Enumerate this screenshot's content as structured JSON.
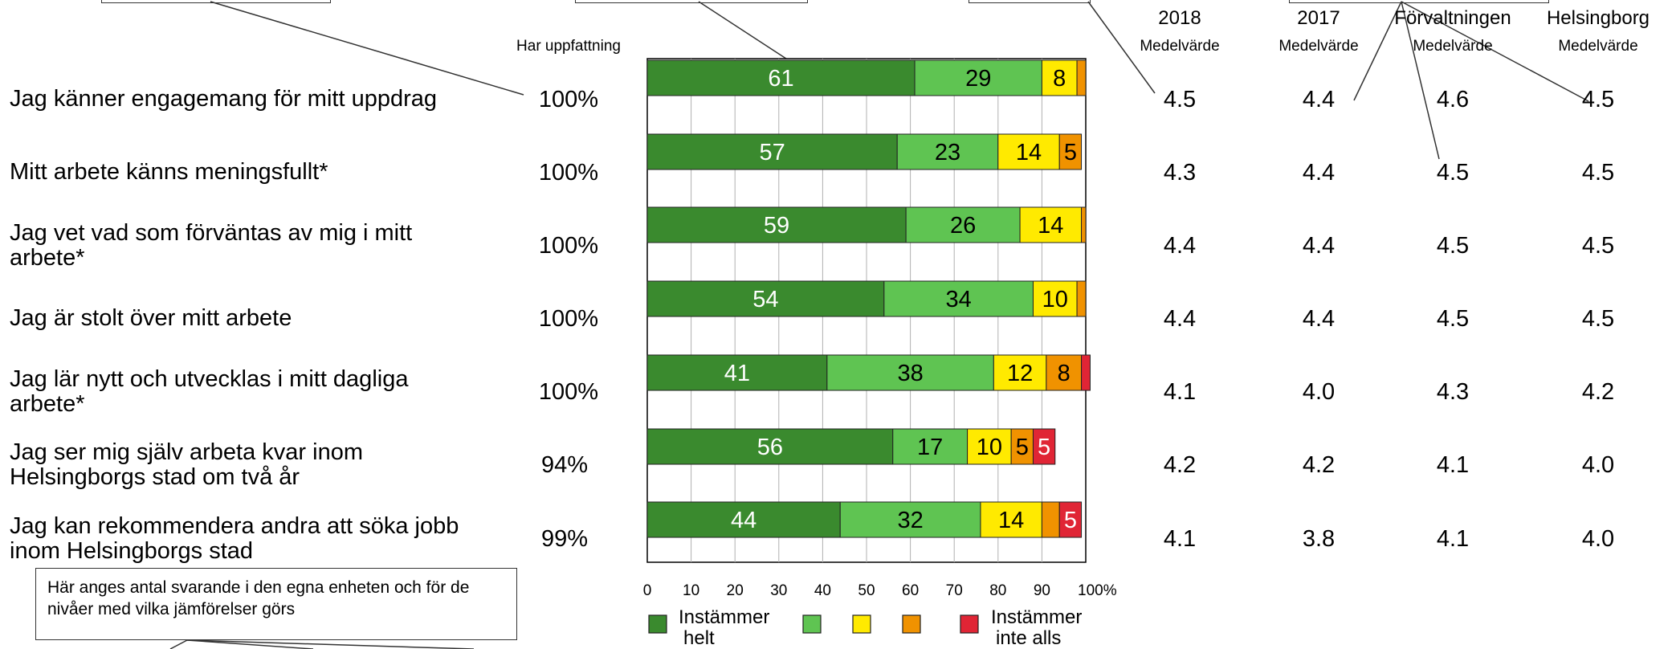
{
  "header": {
    "has_opinion_label": "Har uppfattning",
    "columns": [
      {
        "title": "2018",
        "sub": "Medelvärde"
      },
      {
        "title": "2017",
        "sub": "Medelvärde"
      },
      {
        "title": "Förvaltningen",
        "sub": "Medelvärde"
      },
      {
        "title": "Helsingborg",
        "sub": "Medelvärde"
      }
    ]
  },
  "note": "Här anges antal svarande i den egna enheten och för de nivåer med vilka jämförelser görs",
  "rows": [
    {
      "question": "Jag känner engagemang för mitt uppdrag",
      "has_opinion": "100%",
      "means": [
        "4.5",
        "4.4",
        "4.6",
        "4.5"
      ]
    },
    {
      "question": "Mitt arbete känns meningsfullt*",
      "has_opinion": "100%",
      "means": [
        "4.3",
        "4.4",
        "4.5",
        "4.5"
      ]
    },
    {
      "question": "Jag vet vad som förväntas av mig i mitt arbete*",
      "has_opinion": "100%",
      "means": [
        "4.4",
        "4.4",
        "4.5",
        "4.5"
      ]
    },
    {
      "question": "Jag är stolt över mitt arbete",
      "has_opinion": "100%",
      "means": [
        "4.4",
        "4.4",
        "4.5",
        "4.5"
      ]
    },
    {
      "question": "Jag lär nytt och utvecklas i mitt dagliga arbete*",
      "has_opinion": "100%",
      "means": [
        "4.1",
        "4.0",
        "4.3",
        "4.2"
      ]
    },
    {
      "question": "Jag ser mig själv arbeta kvar inom Helsingborgs stad om två år",
      "has_opinion": "94%",
      "means": [
        "4.2",
        "4.2",
        "4.1",
        "4.0"
      ]
    },
    {
      "question": "Jag kan rekommendera andra att söka jobb inom Helsingborgs stad",
      "has_opinion": "99%",
      "means": [
        "4.1",
        "3.8",
        "4.1",
        "4.0"
      ]
    }
  ],
  "chart_data": {
    "type": "bar",
    "orientation": "horizontal-stacked-100",
    "categories": [
      "Jag känner engagemang för mitt uppdrag",
      "Mitt arbete känns meningsfullt*",
      "Jag vet vad som förväntas av mig i mitt arbete*",
      "Jag är stolt över mitt arbete",
      "Jag lär nytt och utvecklas i mitt dagliga arbete*",
      "Jag ser mig själv arbeta kvar inom Helsingborgs stad om två år",
      "Jag kan rekommendera andra att söka jobb inom Helsingborgs stad"
    ],
    "series": [
      {
        "name": "Instämmer helt",
        "color": "#3a8a2e",
        "label_color": "#ffffff",
        "values": [
          61,
          57,
          59,
          54,
          41,
          56,
          44
        ]
      },
      {
        "name": "",
        "color": "#5fc452",
        "label_color": "#000000",
        "values": [
          29,
          23,
          26,
          34,
          38,
          17,
          32
        ]
      },
      {
        "name": "",
        "color": "#ffea00",
        "label_color": "#000000",
        "values": [
          8,
          14,
          14,
          10,
          12,
          10,
          14
        ]
      },
      {
        "name": "",
        "color": "#f09200",
        "label_color": "#000000",
        "values": [
          2,
          5,
          1,
          2,
          8,
          5,
          4
        ]
      },
      {
        "name": "Instämmer inte alls",
        "color": "#e02535",
        "label_color": "#ffffff",
        "values": [
          0,
          0,
          0,
          0,
          2,
          5,
          5
        ]
      }
    ],
    "data_labels": [
      [
        "61",
        "29",
        "8",
        "",
        ""
      ],
      [
        "57",
        "23",
        "14",
        "5",
        ""
      ],
      [
        "59",
        "26",
        "14",
        "",
        ""
      ],
      [
        "54",
        "34",
        "10",
        "",
        ""
      ],
      [
        "41",
        "38",
        "12",
        "8",
        ""
      ],
      [
        "56",
        "17",
        "10",
        "5",
        "5"
      ],
      [
        "44",
        "32",
        "14",
        "",
        "5"
      ]
    ],
    "xlim": [
      0,
      100
    ],
    "x_ticks": [
      "0",
      "10",
      "20",
      "30",
      "40",
      "50",
      "60",
      "70",
      "80",
      "90",
      "100%"
    ],
    "grid": true,
    "legend": {
      "position": "bottom",
      "labels": [
        "Instämmer helt",
        "",
        "",
        "",
        "Instämmer inte alls"
      ]
    }
  }
}
